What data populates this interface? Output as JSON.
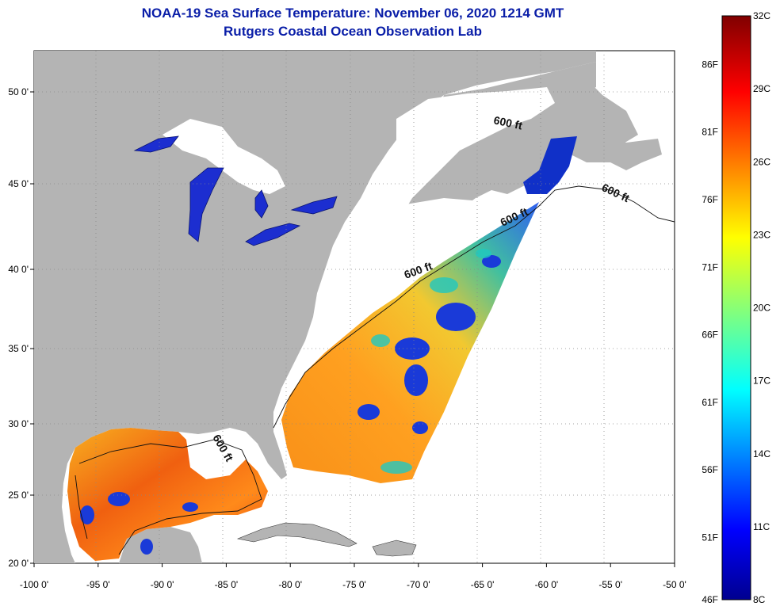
{
  "header": {
    "title": "NOAA-19 Sea Surface Temperature:  November 06, 2020 1214 GMT",
    "subtitle": "Rutgers Coastal Ocean Observation Lab"
  },
  "map": {
    "lon_ticks": [
      "-100 0'",
      "-95 0'",
      "-90 0'",
      "-85 0'",
      "-80 0'",
      "-75 0'",
      "-70 0'",
      "-65 0'",
      "-60 0'",
      "-55 0'",
      "-50 0'"
    ],
    "lat_ticks": [
      "50 0'",
      "45 0'",
      "40 0'",
      "35 0'",
      "30 0'",
      "25 0'",
      "20 0'"
    ],
    "lon_values": [
      -100,
      -95,
      -90,
      -85,
      -80,
      -75,
      -70,
      -65,
      -60,
      -55,
      -50
    ],
    "lat_values": [
      50,
      45,
      40,
      35,
      30,
      25,
      20
    ],
    "contour_label": "600 ft",
    "colors": {
      "land": "#b4b4b4",
      "cloud": "#ffffff",
      "ocean_none": "#ffffff"
    }
  },
  "colorbar": {
    "celsius_labels": [
      "32C",
      "29C",
      "26C",
      "23C",
      "20C",
      "17C",
      "14C",
      "11C",
      "8C"
    ],
    "celsius_values": [
      32,
      29,
      26,
      23,
      20,
      17,
      14,
      11,
      8
    ],
    "fahrenheit_labels": [
      "86F",
      "81F",
      "76F",
      "71F",
      "66F",
      "61F",
      "56F",
      "51F",
      "46F"
    ],
    "fahrenheit_values": [
      86,
      81,
      76,
      71,
      66,
      61,
      56,
      51,
      46
    ],
    "range_c": [
      8,
      32
    ]
  }
}
